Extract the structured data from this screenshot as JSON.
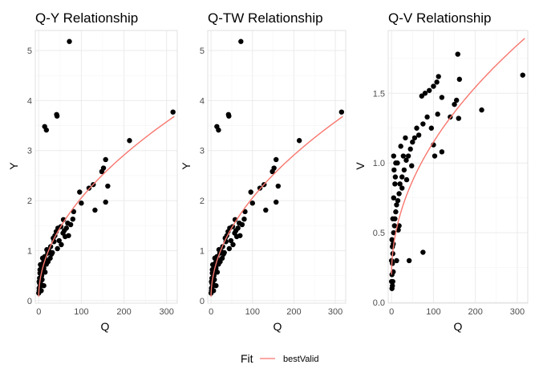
{
  "colors": {
    "fit": "#f8766d",
    "point": "#000000",
    "grid_major": "#ebebeb",
    "grid_minor": "#f5f5f5",
    "panel_border": "#d9d9d9"
  },
  "legend": {
    "title": "Fit",
    "label": "bestValid",
    "position": "bottom"
  },
  "chart_data": [
    {
      "type": "scatter",
      "title": "Q-Y Relationship",
      "xlabel": "Q",
      "ylabel": "Y",
      "xlim": [
        -8,
        325
      ],
      "ylim": [
        -0.05,
        5.4
      ],
      "xticks": [
        "0",
        "100",
        "200",
        "300"
      ],
      "xtick_values": [
        0,
        100,
        200,
        300
      ],
      "yticks": [
        "0",
        "1",
        "2",
        "3",
        "4",
        "5"
      ],
      "ytick_values": [
        0,
        1,
        2,
        3,
        4,
        5
      ],
      "grid": true,
      "fit": {
        "name": "bestValid",
        "a": 0.08,
        "b": 0.18,
        "p": 0.52
      },
      "points": [
        [
          72,
          5.18
        ],
        [
          42,
          3.72
        ],
        [
          43,
          3.69
        ],
        [
          14,
          3.48
        ],
        [
          18,
          3.41
        ],
        [
          315,
          3.77
        ],
        [
          213,
          3.2
        ],
        [
          157,
          2.82
        ],
        [
          152,
          2.65
        ],
        [
          148,
          2.58
        ],
        [
          128,
          2.32
        ],
        [
          118,
          2.25
        ],
        [
          96,
          2.17
        ],
        [
          162,
          2.29
        ],
        [
          157,
          1.97
        ],
        [
          132,
          1.81
        ],
        [
          100,
          1.95
        ],
        [
          82,
          1.78
        ],
        [
          80,
          1.63
        ],
        [
          75,
          1.52
        ],
        [
          68,
          1.55
        ],
        [
          65,
          1.45
        ],
        [
          62,
          1.28
        ],
        [
          57,
          1.35
        ],
        [
          53,
          1.12
        ],
        [
          48,
          1.2
        ],
        [
          44,
          1.04
        ],
        [
          41,
          1.38
        ],
        [
          36,
          1.18
        ],
        [
          34,
          1.25
        ],
        [
          30,
          0.93
        ],
        [
          27,
          0.85
        ],
        [
          25,
          0.98
        ],
        [
          21,
          0.95
        ],
        [
          18,
          0.73
        ],
        [
          16,
          0.82
        ],
        [
          14,
          0.88
        ],
        [
          12,
          0.65
        ],
        [
          10,
          0.58
        ],
        [
          9,
          0.7
        ],
        [
          8,
          0.42
        ],
        [
          7,
          0.5
        ],
        [
          6,
          0.6
        ],
        [
          5,
          0.33
        ],
        [
          4,
          0.44
        ],
        [
          3,
          0.28
        ],
        [
          2,
          0.35
        ],
        [
          1,
          0.2
        ],
        [
          0,
          0.15
        ],
        [
          1,
          0.25
        ],
        [
          2,
          0.45
        ],
        [
          3,
          0.55
        ],
        [
          5,
          0.4
        ],
        [
          7,
          0.68
        ],
        [
          11,
          0.76
        ],
        [
          15,
          0.57
        ],
        [
          19,
          1.02
        ],
        [
          22,
          0.78
        ],
        [
          28,
          1.08
        ],
        [
          32,
          0.96
        ],
        [
          38,
          1.3
        ],
        [
          45,
          1.45
        ],
        [
          52,
          1.48
        ],
        [
          58,
          1.62
        ],
        [
          9,
          0.85
        ],
        [
          3,
          0.62
        ],
        [
          1,
          0.38
        ],
        [
          6,
          0.2
        ],
        [
          12,
          0.3
        ],
        [
          4,
          0.72
        ],
        [
          60,
          1.4
        ],
        [
          70,
          1.3
        ]
      ]
    },
    {
      "type": "scatter",
      "title": "Q-TW Relationship",
      "xlabel": "Q",
      "ylabel": "Y",
      "xlim": [
        -8,
        325
      ],
      "ylim": [
        -0.05,
        5.4
      ],
      "xticks": [
        "0",
        "100",
        "200",
        "300"
      ],
      "xtick_values": [
        0,
        100,
        200,
        300
      ],
      "yticks": [
        "0",
        "1",
        "2",
        "3",
        "4",
        "5"
      ],
      "ytick_values": [
        0,
        1,
        2,
        3,
        4,
        5
      ],
      "grid": true,
      "fit": {
        "name": "bestValid",
        "a": 0.08,
        "b": 0.18,
        "p": 0.52
      },
      "points": [
        [
          72,
          5.18
        ],
        [
          42,
          3.72
        ],
        [
          43,
          3.69
        ],
        [
          14,
          3.48
        ],
        [
          18,
          3.41
        ],
        [
          315,
          3.77
        ],
        [
          213,
          3.2
        ],
        [
          157,
          2.82
        ],
        [
          152,
          2.65
        ],
        [
          148,
          2.58
        ],
        [
          128,
          2.32
        ],
        [
          118,
          2.25
        ],
        [
          96,
          2.17
        ],
        [
          162,
          2.29
        ],
        [
          157,
          1.97
        ],
        [
          132,
          1.81
        ],
        [
          100,
          1.95
        ],
        [
          82,
          1.78
        ],
        [
          80,
          1.63
        ],
        [
          75,
          1.52
        ],
        [
          68,
          1.55
        ],
        [
          65,
          1.45
        ],
        [
          62,
          1.28
        ],
        [
          57,
          1.35
        ],
        [
          53,
          1.12
        ],
        [
          48,
          1.2
        ],
        [
          44,
          1.04
        ],
        [
          41,
          1.38
        ],
        [
          36,
          1.18
        ],
        [
          34,
          1.25
        ],
        [
          30,
          0.93
        ],
        [
          27,
          0.85
        ],
        [
          25,
          0.98
        ],
        [
          21,
          0.95
        ],
        [
          18,
          0.73
        ],
        [
          16,
          0.82
        ],
        [
          14,
          0.88
        ],
        [
          12,
          0.65
        ],
        [
          10,
          0.58
        ],
        [
          9,
          0.7
        ],
        [
          8,
          0.42
        ],
        [
          7,
          0.5
        ],
        [
          6,
          0.6
        ],
        [
          5,
          0.33
        ],
        [
          4,
          0.44
        ],
        [
          3,
          0.28
        ],
        [
          2,
          0.35
        ],
        [
          1,
          0.2
        ],
        [
          0,
          0.15
        ],
        [
          1,
          0.25
        ],
        [
          2,
          0.45
        ],
        [
          3,
          0.55
        ],
        [
          5,
          0.4
        ],
        [
          7,
          0.68
        ],
        [
          11,
          0.76
        ],
        [
          15,
          0.57
        ],
        [
          19,
          1.02
        ],
        [
          22,
          0.78
        ],
        [
          28,
          1.08
        ],
        [
          32,
          0.96
        ],
        [
          38,
          1.3
        ],
        [
          45,
          1.45
        ],
        [
          52,
          1.48
        ],
        [
          58,
          1.62
        ],
        [
          9,
          0.85
        ],
        [
          3,
          0.62
        ],
        [
          1,
          0.38
        ],
        [
          6,
          0.2
        ],
        [
          12,
          0.3
        ],
        [
          4,
          0.72
        ],
        [
          60,
          1.4
        ],
        [
          70,
          1.3
        ]
      ]
    },
    {
      "type": "scatter",
      "title": "Q-V Relationship",
      "xlabel": "Q",
      "ylabel": "V",
      "xlim": [
        -8,
        325
      ],
      "ylim": [
        -0.005,
        1.95
      ],
      "xticks": [
        "0",
        "100",
        "200",
        "300"
      ],
      "xtick_values": [
        0,
        100,
        200,
        300
      ],
      "yticks": [
        "0.0",
        "0.5",
        "1.0",
        "1.5"
      ],
      "ytick_values": [
        0,
        0.5,
        1,
        1.5
      ],
      "grid": true,
      "fit": {
        "name": "bestValid",
        "a": 0.2,
        "b": 0.095,
        "p": 0.5
      },
      "points": [
        [
          158,
          1.78
        ],
        [
          108,
          1.58
        ],
        [
          112,
          1.62
        ],
        [
          162,
          1.6
        ],
        [
          90,
          1.52
        ],
        [
          100,
          1.55
        ],
        [
          80,
          1.5
        ],
        [
          72,
          1.48
        ],
        [
          313,
          1.63
        ],
        [
          155,
          1.45
        ],
        [
          150,
          1.42
        ],
        [
          140,
          1.33
        ],
        [
          160,
          1.32
        ],
        [
          215,
          1.38
        ],
        [
          120,
          1.47
        ],
        [
          110,
          1.35
        ],
        [
          85,
          1.33
        ],
        [
          75,
          1.28
        ],
        [
          95,
          1.25
        ],
        [
          60,
          1.25
        ],
        [
          65,
          1.2
        ],
        [
          55,
          1.18
        ],
        [
          45,
          1.1
        ],
        [
          50,
          1.15
        ],
        [
          40,
          1.05
        ],
        [
          35,
          1.02
        ],
        [
          30,
          0.95
        ],
        [
          25,
          0.9
        ],
        [
          20,
          0.85
        ],
        [
          18,
          0.78
        ],
        [
          15,
          0.73
        ],
        [
          12,
          0.7
        ],
        [
          10,
          0.65
        ],
        [
          8,
          0.6
        ],
        [
          7,
          0.55
        ],
        [
          5,
          0.5
        ],
        [
          4,
          0.42
        ],
        [
          3,
          0.35
        ],
        [
          2,
          0.28
        ],
        [
          1,
          0.2
        ],
        [
          0,
          0.15
        ],
        [
          1,
          0.1
        ],
        [
          2,
          0.12
        ],
        [
          0,
          0.3
        ],
        [
          3,
          0.6
        ],
        [
          5,
          0.75
        ],
        [
          9,
          0.9
        ],
        [
          14,
          1.0
        ],
        [
          22,
          1.12
        ],
        [
          28,
          1.05
        ],
        [
          33,
          1.18
        ],
        [
          100,
          1.13
        ],
        [
          103,
          1.05
        ],
        [
          120,
          1.08
        ],
        [
          42,
          0.3
        ],
        [
          75,
          0.36
        ],
        [
          16,
          0.52
        ],
        [
          18,
          0.55
        ],
        [
          8,
          0.85
        ],
        [
          10,
          1.0
        ],
        [
          6,
          0.95
        ],
        [
          5,
          1.05
        ],
        [
          3,
          0.15
        ],
        [
          4,
          0.22
        ],
        [
          2,
          0.4
        ],
        [
          12,
          0.3
        ],
        [
          1,
          0.45
        ],
        [
          25,
          0.82
        ],
        [
          36,
          0.88
        ],
        [
          48,
          0.98
        ]
      ]
    }
  ]
}
